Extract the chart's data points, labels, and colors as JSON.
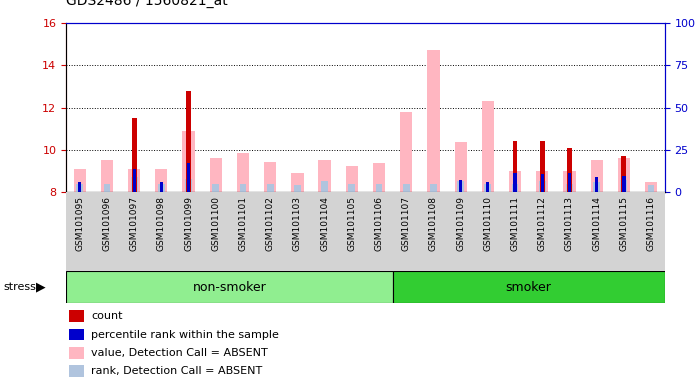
{
  "title": "GDS2486 / 1560821_at",
  "samples": [
    "GSM101095",
    "GSM101096",
    "GSM101097",
    "GSM101098",
    "GSM101099",
    "GSM101100",
    "GSM101101",
    "GSM101102",
    "GSM101103",
    "GSM101104",
    "GSM101105",
    "GSM101106",
    "GSM101107",
    "GSM101108",
    "GSM101109",
    "GSM101110",
    "GSM101111",
    "GSM101112",
    "GSM101113",
    "GSM101114",
    "GSM101115",
    "GSM101116"
  ],
  "non_smoker_indices": [
    0,
    11
  ],
  "smoker_indices": [
    12,
    21
  ],
  "group_colors": {
    "non-smoker": "#90EE90",
    "smoker": "#32CD32"
  },
  "ylim_left": [
    8,
    16
  ],
  "ylim_right": [
    0,
    100
  ],
  "yticks_left": [
    8,
    10,
    12,
    14,
    16
  ],
  "yticks_right": [
    0,
    25,
    50,
    75,
    100
  ],
  "value_bar_color": "#FFB6C1",
  "rank_bar_color": "#B0C4DE",
  "count_bar_color": "#CC0000",
  "percentile_bar_color": "#0000CC",
  "value_data": [
    9.1,
    9.5,
    9.1,
    9.1,
    10.9,
    9.6,
    9.85,
    9.4,
    8.9,
    9.5,
    9.25,
    9.35,
    11.8,
    14.7,
    10.35,
    12.3,
    9.0,
    9.0,
    9.0,
    9.5,
    9.6,
    8.45
  ],
  "rank_data": [
    8.4,
    8.4,
    8.7,
    8.4,
    8.6,
    8.4,
    8.4,
    8.4,
    8.35,
    8.5,
    8.4,
    8.4,
    8.4,
    8.4,
    8.5,
    8.4,
    8.4,
    8.5,
    8.4,
    8.45,
    8.55,
    8.35
  ],
  "count_data": [
    0,
    0,
    11.5,
    0,
    12.8,
    0,
    0,
    0,
    0,
    0,
    0,
    0,
    0,
    0,
    0,
    0,
    10.4,
    10.4,
    10.1,
    0,
    9.7,
    0
  ],
  "percentile_data": [
    8.45,
    0,
    9.1,
    8.45,
    9.35,
    0,
    0,
    0,
    0,
    0,
    0,
    0,
    0,
    0,
    8.55,
    8.45,
    8.9,
    8.85,
    8.9,
    8.7,
    8.75,
    0
  ],
  "plot_bg_color": "#FFFFFF",
  "xtick_bg_color": "#D3D3D3",
  "left_axis_color": "#CC0000",
  "right_axis_color": "#0000CC",
  "legend_items": [
    {
      "color": "#CC0000",
      "label": "count"
    },
    {
      "color": "#0000CC",
      "label": "percentile rank within the sample"
    },
    {
      "color": "#FFB6C1",
      "label": "value, Detection Call = ABSENT"
    },
    {
      "color": "#B0C4DE",
      "label": "rank, Detection Call = ABSENT"
    }
  ]
}
